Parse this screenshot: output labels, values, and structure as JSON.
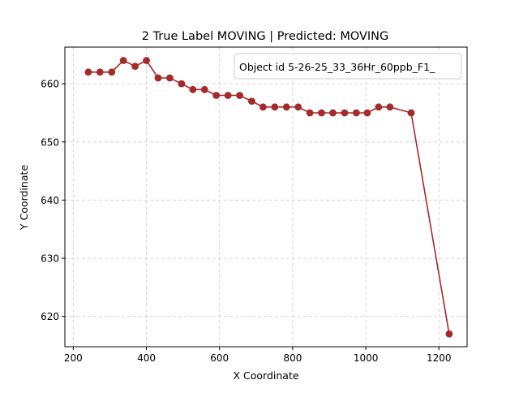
{
  "chart_data": {
    "type": "line",
    "title": "2 True Label MOVING | Predicted: MOVING",
    "xlabel": "X Coordinate",
    "ylabel": "Y Coordinate",
    "xlim": [
      177,
      1277
    ],
    "ylim": [
      614.8,
      666.3
    ],
    "xticks": [
      200,
      400,
      600,
      800,
      1000,
      1200
    ],
    "yticks": [
      620,
      630,
      640,
      650,
      660
    ],
    "grid": true,
    "legend_position": "top-right",
    "series": [
      {
        "name": "Object id 5-26-25_33_36Hr_60ppb_F1_",
        "color": "#a52a2a",
        "marker": "circle",
        "x": [
          241,
          273,
          305,
          337,
          369,
          400,
          432,
          464,
          496,
          527,
          559,
          591,
          623,
          655,
          688,
          719,
          751,
          783,
          815,
          847,
          879,
          910,
          942,
          974,
          1004,
          1035,
          1066,
          1124,
          1228
        ],
        "y": [
          662,
          662,
          662,
          664,
          663,
          664,
          661,
          661,
          660,
          659,
          659,
          658,
          658,
          658,
          657,
          656,
          656,
          656,
          656,
          655,
          655,
          655,
          655,
          655,
          655,
          656,
          656,
          655,
          617
        ]
      }
    ]
  }
}
